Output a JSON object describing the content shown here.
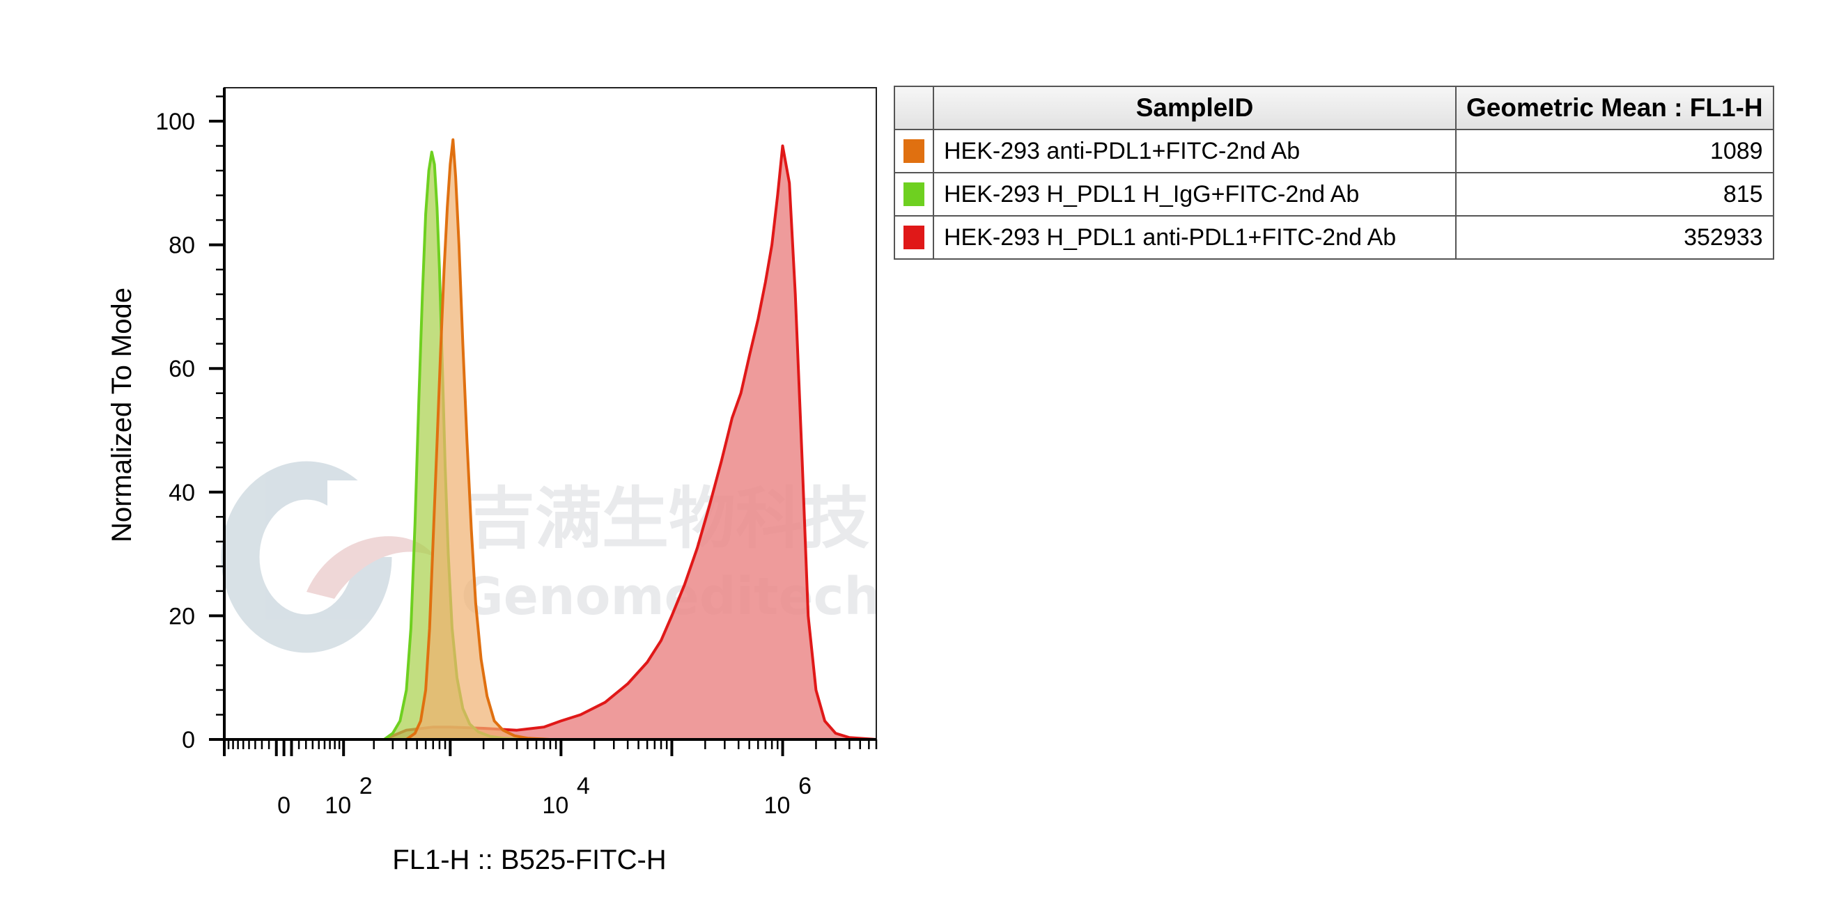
{
  "chart_data": {
    "type": "area",
    "xlabel": "FL1-H :: B525-FITC-H",
    "ylabel": "Normalized To Mode",
    "ylim": [
      0,
      105
    ],
    "yticks": [
      0,
      20,
      40,
      60,
      80,
      100
    ],
    "x_scale": "biexponential",
    "xlim": [
      -100,
      7000000
    ],
    "xticks": [
      {
        "value": 0,
        "base": "0",
        "exp": ""
      },
      {
        "value": 100,
        "base": "10",
        "exp": "2"
      },
      {
        "value": 10000,
        "base": "10",
        "exp": "4"
      },
      {
        "value": 1000000,
        "base": "10",
        "exp": "6"
      }
    ],
    "series": [
      {
        "name": "HEK-293 anti-PDL1+FITC-2nd Ab",
        "color": "#e07010",
        "fill": "#f0b070",
        "x": [
          -100,
          400,
          480,
          540,
          600,
          650,
          700,
          760,
          820,
          880,
          940,
          1000,
          1060,
          1120,
          1200,
          1300,
          1420,
          1550,
          1700,
          1900,
          2150,
          2500,
          3000,
          3800,
          5000,
          8000,
          7000000
        ],
        "y": [
          0,
          0,
          1,
          3,
          8,
          18,
          32,
          48,
          63,
          76,
          86,
          93,
          97,
          91,
          80,
          64,
          48,
          34,
          22,
          13,
          7,
          3,
          1.5,
          0.6,
          0.2,
          0,
          0
        ]
      },
      {
        "name": "HEK-293 H_PDL1 H_IgG+FITC-2nd Ab",
        "color": "#6ed020",
        "fill": "#a8d04a",
        "x": [
          -100,
          250,
          300,
          350,
          400,
          440,
          480,
          520,
          560,
          600,
          640,
          680,
          720,
          760,
          800,
          850,
          900,
          960,
          1040,
          1150,
          1300,
          1500,
          1800,
          2300,
          3000,
          5000,
          7000000
        ],
        "y": [
          0,
          0,
          1,
          3,
          8,
          18,
          35,
          55,
          72,
          85,
          92,
          95,
          93,
          86,
          76,
          60,
          44,
          30,
          18,
          10,
          5,
          2.5,
          1.2,
          0.5,
          0.2,
          0,
          0
        ]
      },
      {
        "name": "HEK-293 H_PDL1 anti-PDL1+FITC-2nd Ab",
        "color": "#e01818",
        "fill": "#eb8a8a",
        "x": [
          -100,
          250,
          400,
          700,
          1000,
          2000,
          4000,
          7000,
          10000,
          15000,
          25000,
          40000,
          60000,
          80000,
          100000,
          130000,
          170000,
          220000,
          280000,
          350000,
          420000,
          500000,
          600000,
          700000,
          800000,
          900000,
          1000000,
          1150000,
          1300000,
          1500000,
          1700000,
          2000000,
          2400000,
          3000000,
          4000000,
          7000000
        ],
        "y": [
          0,
          0,
          1.5,
          2,
          2,
          1.8,
          1.5,
          2,
          3,
          4,
          6,
          9,
          12.5,
          16,
          20,
          25,
          31,
          38,
          45,
          52,
          56,
          62,
          68,
          74,
          80,
          88,
          96,
          90,
          72,
          45,
          20,
          8,
          3,
          1,
          0.3,
          0
        ]
      }
    ]
  },
  "legend": {
    "col_sample": "SampleID",
    "col_mean": "Geometric Mean : FL1-H",
    "rows": [
      {
        "color": "#e07010",
        "sample": "HEK-293 anti-PDL1+FITC-2nd Ab",
        "mean": "1089"
      },
      {
        "color": "#6ed020",
        "sample": "HEK-293 H_PDL1 H_IgG+FITC-2nd Ab",
        "mean": "815"
      },
      {
        "color": "#e01818",
        "sample": "HEK-293 H_PDL1 anti-PDL1+FITC-2nd Ab",
        "mean": "352933"
      }
    ]
  },
  "watermark": {
    "cn_text": "吉满生物科技",
    "en_text": "Genomeditech",
    "logo_icon": "genomeditech-logo-icon"
  }
}
